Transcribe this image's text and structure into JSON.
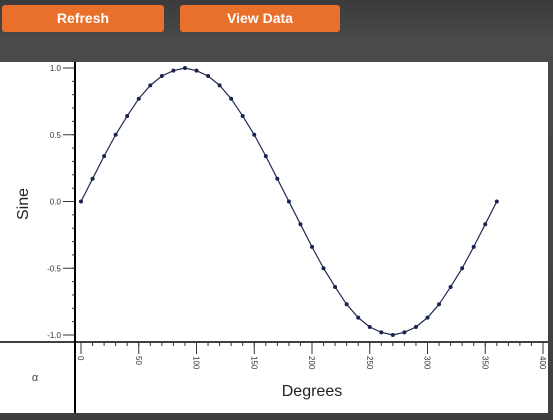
{
  "toolbar": {
    "refresh_label": "Refresh",
    "view_data_label": "View Data"
  },
  "chart_data": {
    "type": "line",
    "title": "",
    "xlabel": "Degrees",
    "ylabel": "Sine",
    "corner_label": "α",
    "xlim": [
      -5,
      400
    ],
    "ylim": [
      -1.0,
      1.0
    ],
    "x_ticks": [
      0,
      50,
      100,
      150,
      200,
      250,
      300,
      350,
      400
    ],
    "x_tick_labels": [
      "0",
      "50",
      "100",
      "150",
      "200",
      "250",
      "300",
      "350",
      "400"
    ],
    "y_ticks": [
      1.0,
      0.5,
      0.0,
      -0.5,
      -1.0
    ],
    "y_tick_labels": [
      "1.0",
      "0.5",
      "0.0",
      "-0.5",
      "-1.0"
    ],
    "line_color": "#1f2a55",
    "marker_color": "#1a2350",
    "series": [
      {
        "x": [
          0,
          10,
          20,
          30,
          40,
          50,
          60,
          70,
          80,
          90,
          100,
          110,
          120,
          130,
          140,
          150,
          160,
          170,
          180,
          190,
          200,
          210,
          220,
          230,
          240,
          250,
          260,
          270,
          280,
          290,
          300,
          310,
          320,
          330,
          340,
          350,
          360
        ],
        "values": [
          0,
          0.17,
          0.34,
          0.5,
          0.64,
          0.77,
          0.87,
          0.94,
          0.98,
          1,
          0.98,
          0.94,
          0.87,
          0.77,
          0.64,
          0.5,
          0.34,
          0.17,
          0,
          -0.17,
          -0.34,
          -0.5,
          -0.64,
          -0.77,
          -0.87,
          -0.94,
          -0.98,
          -1,
          -0.98,
          -0.94,
          -0.87,
          -0.77,
          -0.64,
          -0.5,
          -0.34,
          -0.17,
          0
        ]
      }
    ]
  }
}
